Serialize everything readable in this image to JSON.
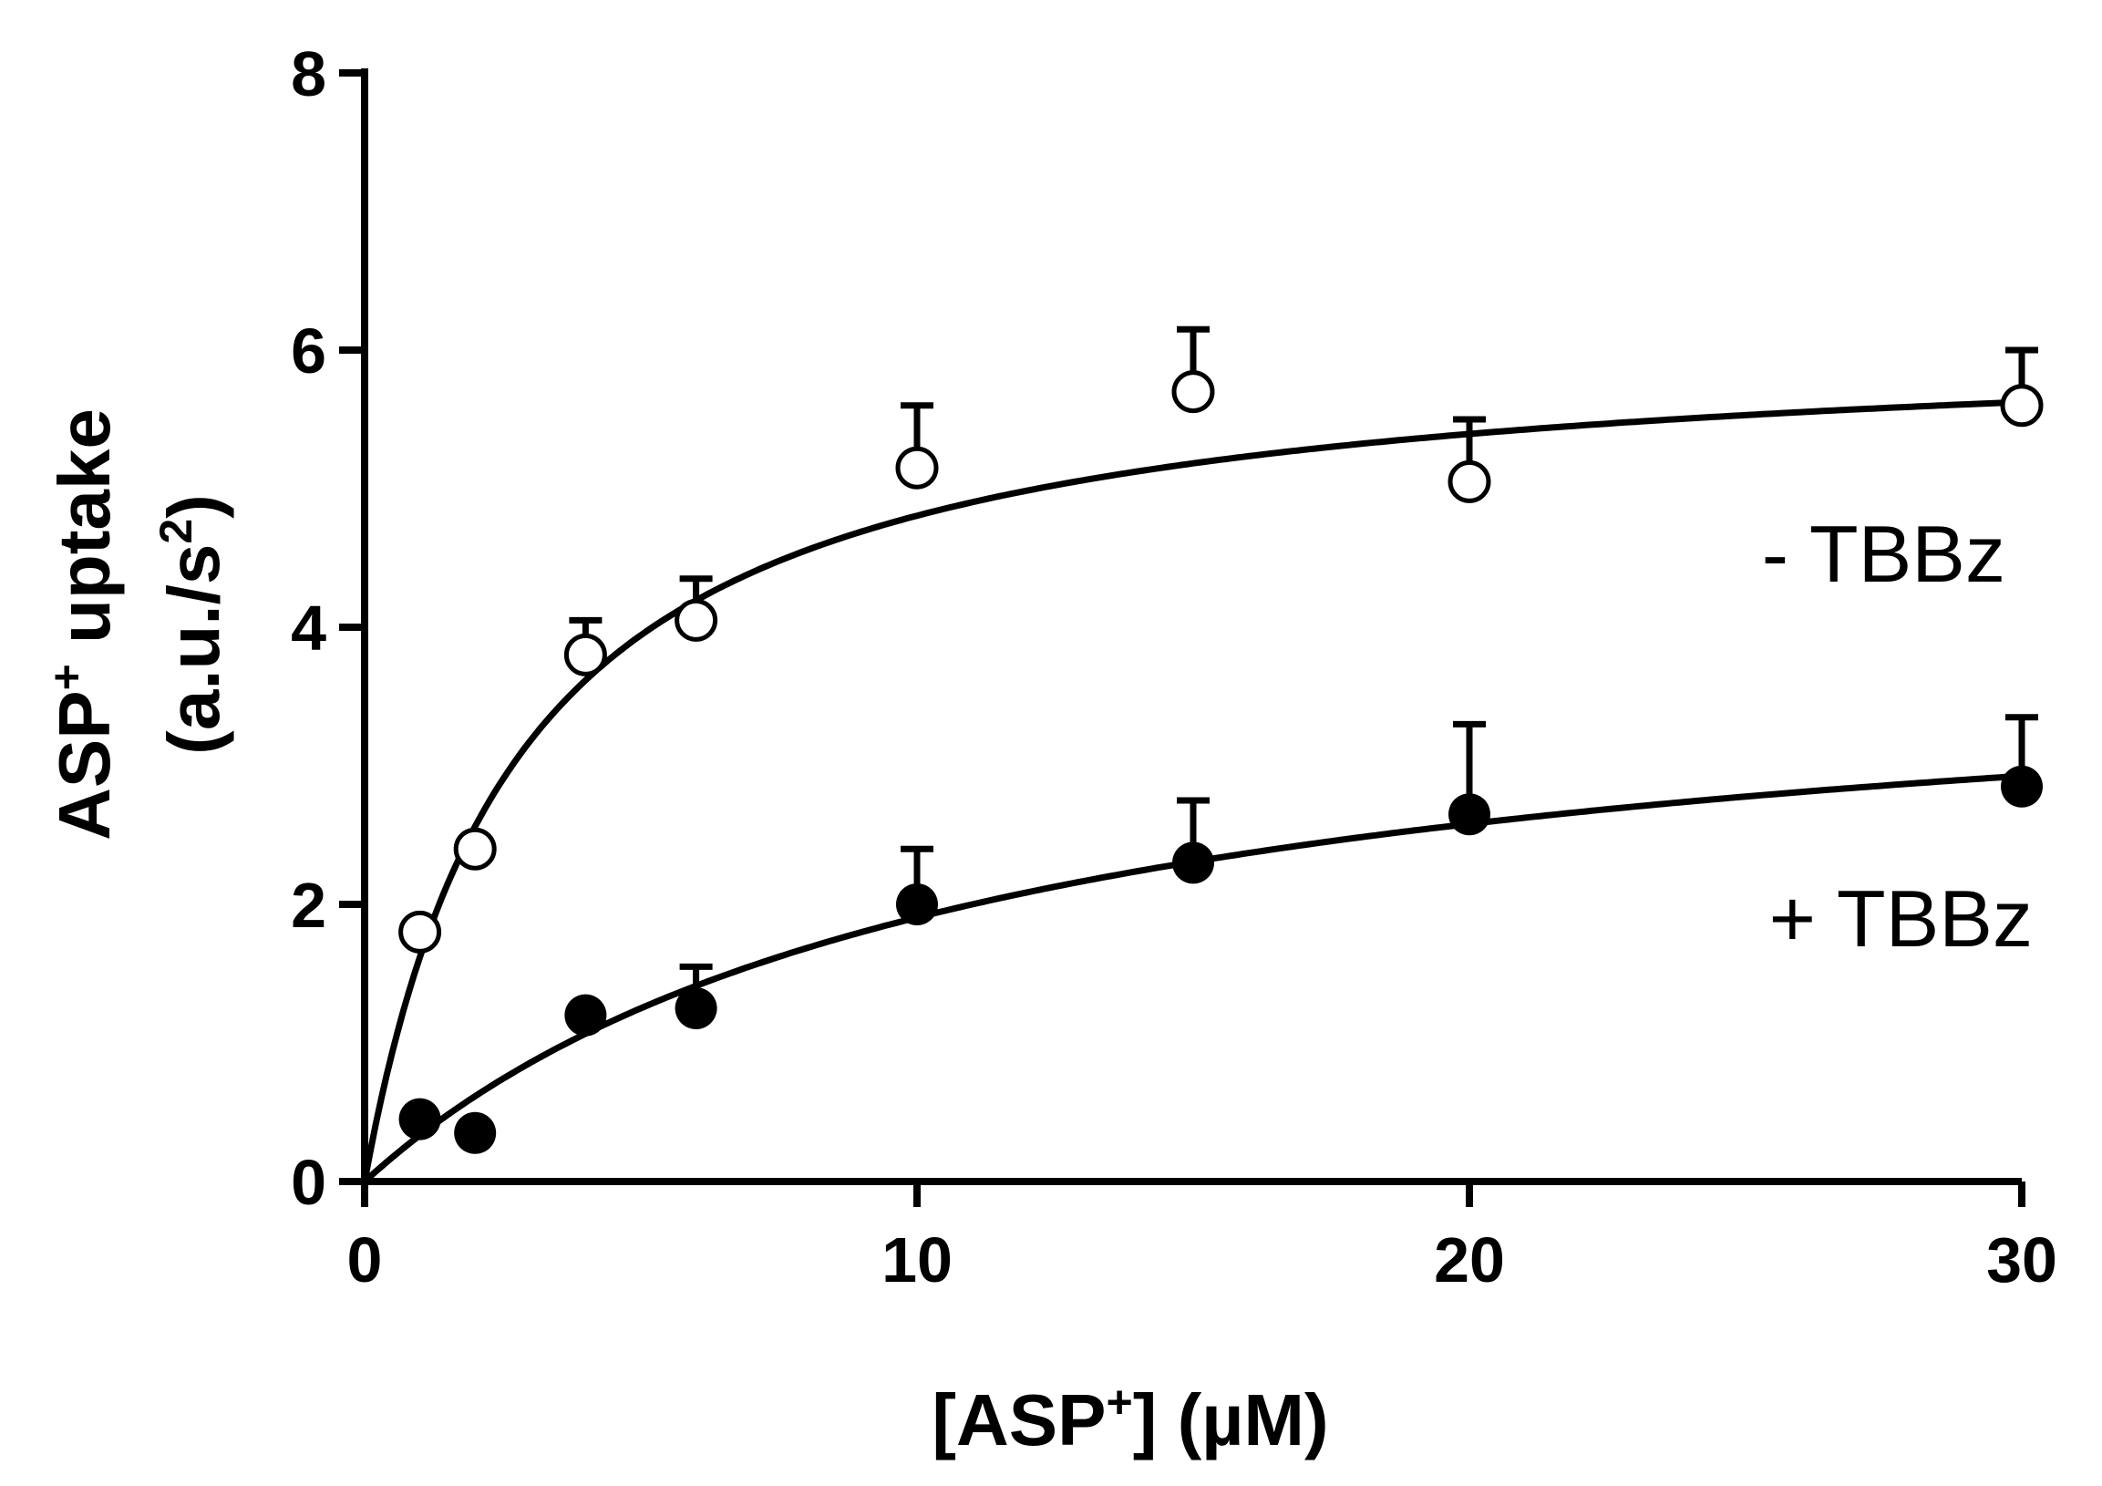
{
  "chart_data": {
    "type": "scatter",
    "xlabel": {
      "pre": "[ASP",
      "sup": "+",
      "post": "] (µM)"
    },
    "ylabel": {
      "line1_pre": "ASP",
      "line1_sup": "+",
      "line1_post": " uptake",
      "line2_pre": "(a.u./s",
      "line2_sup": "2",
      "line2_post": ")"
    },
    "xlim": [
      0,
      30
    ],
    "ylim": [
      0,
      8
    ],
    "xticks": [
      0,
      10,
      20,
      30
    ],
    "yticks": [
      0,
      2,
      4,
      6,
      8
    ],
    "xtick_labels": [
      "0",
      "10",
      "20",
      "30"
    ],
    "ytick_labels": [
      "0",
      "2",
      "4",
      "6",
      "8"
    ],
    "series": [
      {
        "name": "- TBBz",
        "marker": "open-circle",
        "x": [
          1,
          2,
          4,
          6,
          10,
          15,
          20,
          30
        ],
        "y": [
          1.8,
          2.4,
          3.8,
          4.05,
          5.15,
          5.7,
          5.05,
          5.6
        ],
        "err": [
          0.0,
          0.0,
          0.25,
          0.3,
          0.45,
          0.45,
          0.45,
          0.4
        ],
        "fit": {
          "model": "michaelis-menten",
          "vmax": 6.15,
          "km": 2.8
        }
      },
      {
        "name": "+ TBBz",
        "marker": "filled-circle",
        "x": [
          1,
          2,
          4,
          6,
          10,
          15,
          20,
          30
        ],
        "y": [
          0.45,
          0.35,
          1.2,
          1.25,
          2.0,
          2.3,
          2.65,
          2.85
        ],
        "err": [
          0.0,
          0.0,
          0.0,
          0.3,
          0.4,
          0.45,
          0.65,
          0.5
        ],
        "fit": {
          "model": "michaelis-menten",
          "vmax": 4.0,
          "km": 11.0
        }
      }
    ],
    "legend": [
      {
        "label": "- TBBz",
        "position": "right, above upper curve"
      },
      {
        "label": "+ TBBz",
        "position": "right, above lower curve"
      }
    ]
  }
}
